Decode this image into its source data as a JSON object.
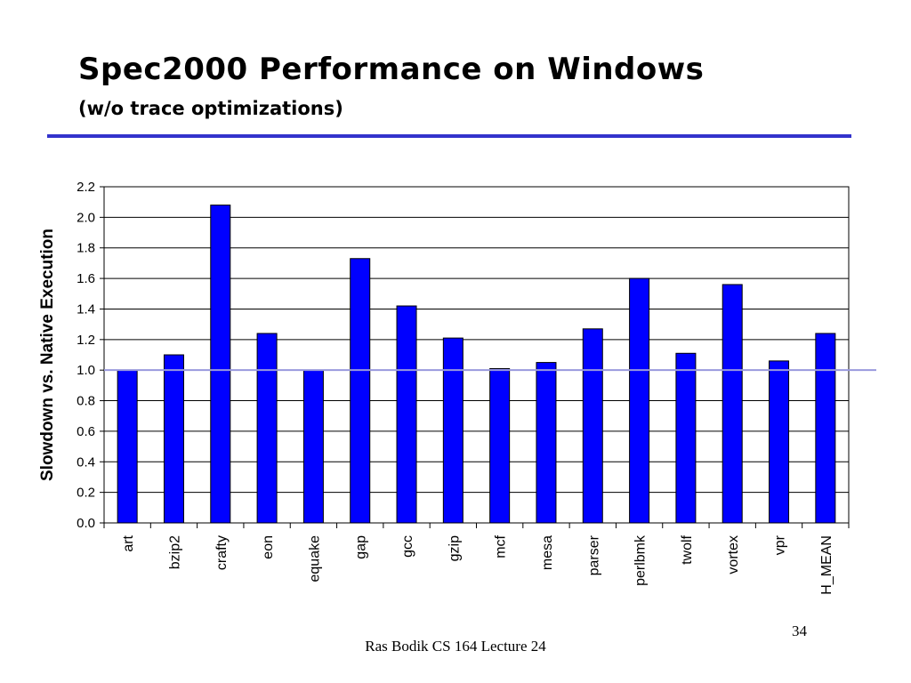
{
  "slide": {
    "title": "Spec2000 Performance on Windows",
    "subtitle": "(w/o trace optimizations)",
    "footer": "Ras Bodik CS 164  Lecture 24",
    "page_number": "34",
    "accent_color": "#3333cc"
  },
  "chart_data": {
    "type": "bar",
    "title": "",
    "xlabel": "",
    "ylabel": "Slowdown vs. Native Execution",
    "categories": [
      "art",
      "bzip2",
      "crafty",
      "eon",
      "equake",
      "gap",
      "gcc",
      "gzip",
      "mcf",
      "mesa",
      "parser",
      "perlbmk",
      "twolf",
      "vortex",
      "vpr",
      "H_MEAN"
    ],
    "values": [
      1.0,
      1.1,
      2.08,
      1.24,
      1.0,
      1.73,
      1.42,
      1.21,
      1.01,
      1.05,
      1.27,
      1.6,
      1.11,
      1.56,
      1.06,
      1.24
    ],
    "ylim": [
      0,
      2.2
    ],
    "yticks": [
      "0.0",
      "0.2",
      "0.4",
      "0.6",
      "0.8",
      "1.0",
      "1.2",
      "1.4",
      "1.6",
      "1.8",
      "2.0",
      "2.2"
    ],
    "reference_line": 1.0,
    "grid": true,
    "bar_color": "#0000ff",
    "reference_line_color": "#9999dd"
  }
}
